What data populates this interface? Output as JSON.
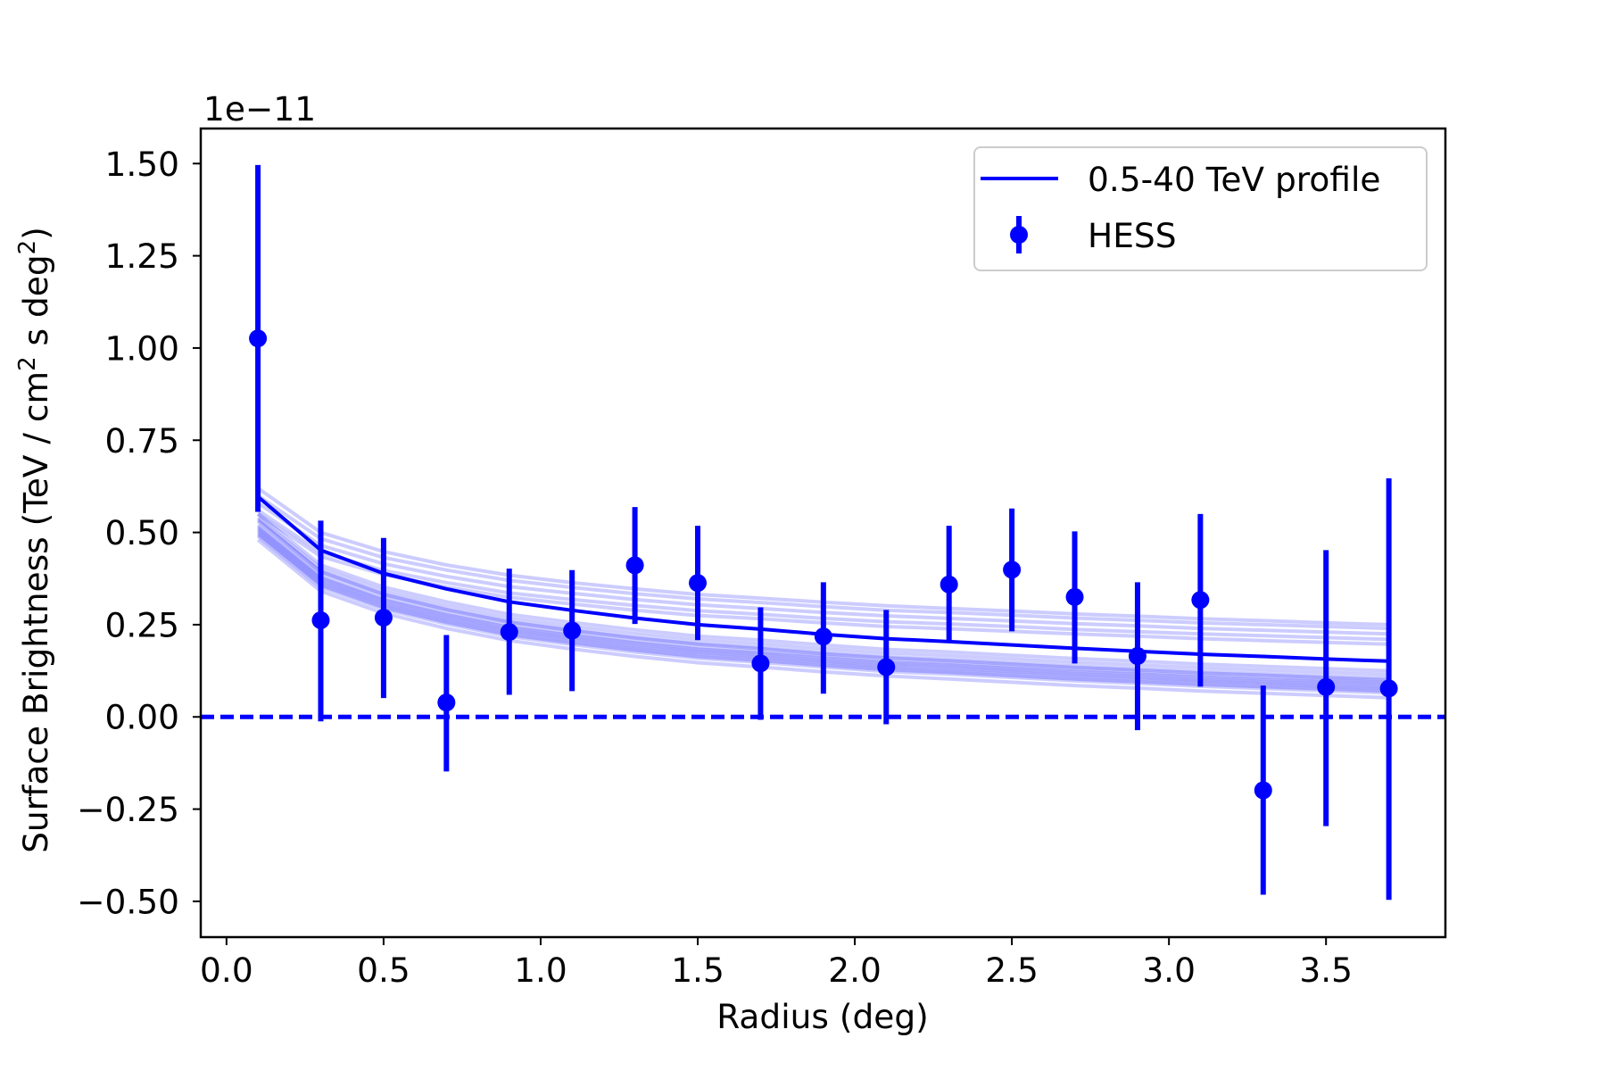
{
  "chart_data": {
    "type": "line",
    "title": "",
    "xlabel": "Radius (deg)",
    "ylabel": {
      "prefix": "Surface Brightness (TeV / cm",
      "sup1": "2",
      "middle": " s deg",
      "sup2": "2",
      "suffix": ")"
    },
    "y_offset_text": "1e−11",
    "xlim": [
      -0.082,
      3.88
    ],
    "ylim": [
      -0.597,
      1.595
    ],
    "grid": false,
    "legend_position": "top-right",
    "x_ticks": [
      {
        "value": 0.0,
        "label": "0.0"
      },
      {
        "value": 0.5,
        "label": "0.5"
      },
      {
        "value": 1.0,
        "label": "1.0"
      },
      {
        "value": 1.5,
        "label": "1.5"
      },
      {
        "value": 2.0,
        "label": "2.0"
      },
      {
        "value": 2.5,
        "label": "2.5"
      },
      {
        "value": 3.0,
        "label": "3.0"
      },
      {
        "value": 3.5,
        "label": "3.5"
      }
    ],
    "y_ticks": [
      {
        "value": 1.5,
        "label": "1.50"
      },
      {
        "value": 1.25,
        "label": "1.25"
      },
      {
        "value": 1.0,
        "label": "1.00"
      },
      {
        "value": 0.75,
        "label": "0.75"
      },
      {
        "value": 0.5,
        "label": "0.50"
      },
      {
        "value": 0.25,
        "label": "0.25"
      },
      {
        "value": 0.0,
        "label": "0.00"
      },
      {
        "value": -0.25,
        "label": "−0.25"
      },
      {
        "value": -0.5,
        "label": "−0.50"
      }
    ],
    "colors": {
      "series": "#0000ff",
      "light": "#0000ff",
      "axis": "#000000",
      "legend_edge": "#cccccc"
    },
    "x": [
      0.1,
      0.3,
      0.5,
      0.7,
      0.9,
      1.1,
      1.3,
      1.5,
      1.7,
      1.9,
      2.1,
      2.3,
      2.5,
      2.7,
      2.9,
      3.1,
      3.3,
      3.5,
      3.7
    ],
    "series": [
      {
        "name": "0.5-40 TeV profile",
        "kind": "line",
        "values": [
          0.597,
          0.452,
          0.389,
          0.347,
          0.312,
          0.289,
          0.268,
          0.25,
          0.238,
          0.224,
          0.212,
          0.204,
          0.195,
          0.186,
          0.178,
          0.17,
          0.164,
          0.157,
          0.151
        ]
      },
      {
        "name": "HESS",
        "kind": "errorbar",
        "values": [
          1.026,
          0.262,
          0.269,
          0.039,
          0.23,
          0.234,
          0.411,
          0.363,
          0.145,
          0.218,
          0.135,
          0.359,
          0.399,
          0.325,
          0.165,
          0.317,
          -0.199,
          0.081,
          0.077
        ],
        "err_upper": [
          1.496,
          0.532,
          0.485,
          0.222,
          0.402,
          0.398,
          0.569,
          0.518,
          0.297,
          0.365,
          0.29,
          0.518,
          0.565,
          0.503,
          0.365,
          0.55,
          0.085,
          0.452,
          0.647
        ],
        "err_lower": [
          0.556,
          -0.012,
          0.051,
          -0.148,
          0.06,
          0.07,
          0.252,
          0.208,
          -0.008,
          0.063,
          -0.02,
          0.202,
          0.232,
          0.145,
          -0.036,
          0.082,
          -0.482,
          -0.296,
          -0.496
        ]
      }
    ],
    "light_curves": [
      [
        0.62,
        0.5,
        0.448,
        0.412,
        0.384,
        0.364,
        0.347,
        0.332,
        0.322,
        0.311,
        0.301,
        0.294,
        0.287,
        0.279,
        0.273,
        0.266,
        0.261,
        0.255,
        0.25
      ],
      [
        0.6,
        0.483,
        0.432,
        0.398,
        0.37,
        0.351,
        0.334,
        0.32,
        0.31,
        0.299,
        0.289,
        0.283,
        0.276,
        0.268,
        0.262,
        0.255,
        0.25,
        0.245,
        0.24
      ],
      [
        0.58,
        0.465,
        0.415,
        0.381,
        0.353,
        0.335,
        0.318,
        0.304,
        0.294,
        0.283,
        0.274,
        0.267,
        0.26,
        0.253,
        0.247,
        0.24,
        0.235,
        0.23,
        0.225
      ],
      [
        0.56,
        0.446,
        0.397,
        0.364,
        0.336,
        0.318,
        0.302,
        0.288,
        0.278,
        0.267,
        0.258,
        0.252,
        0.245,
        0.237,
        0.231,
        0.225,
        0.22,
        0.215,
        0.21
      ],
      [
        0.55,
        0.435,
        0.386,
        0.352,
        0.324,
        0.306,
        0.289,
        0.275,
        0.266,
        0.255,
        0.245,
        0.239,
        0.232,
        0.225,
        0.219,
        0.212,
        0.207,
        0.202,
        0.197
      ],
      [
        0.55,
        0.412,
        0.352,
        0.312,
        0.278,
        0.256,
        0.236,
        0.219,
        0.208,
        0.195,
        0.183,
        0.176,
        0.167,
        0.158,
        0.151,
        0.143,
        0.137,
        0.131,
        0.125
      ],
      [
        0.54,
        0.402,
        0.342,
        0.302,
        0.268,
        0.246,
        0.226,
        0.209,
        0.198,
        0.185,
        0.173,
        0.166,
        0.157,
        0.148,
        0.141,
        0.133,
        0.127,
        0.121,
        0.115
      ],
      [
        0.535,
        0.394,
        0.332,
        0.291,
        0.257,
        0.234,
        0.214,
        0.197,
        0.185,
        0.171,
        0.16,
        0.152,
        0.143,
        0.134,
        0.127,
        0.119,
        0.113,
        0.106,
        0.1
      ],
      [
        0.53,
        0.392,
        0.332,
        0.292,
        0.258,
        0.236,
        0.216,
        0.199,
        0.188,
        0.175,
        0.163,
        0.156,
        0.147,
        0.138,
        0.131,
        0.123,
        0.117,
        0.111,
        0.105
      ],
      [
        0.52,
        0.382,
        0.322,
        0.282,
        0.248,
        0.226,
        0.206,
        0.189,
        0.178,
        0.165,
        0.153,
        0.146,
        0.137,
        0.128,
        0.121,
        0.113,
        0.107,
        0.101,
        0.095
      ],
      [
        0.515,
        0.377,
        0.317,
        0.277,
        0.243,
        0.221,
        0.201,
        0.184,
        0.173,
        0.16,
        0.148,
        0.141,
        0.132,
        0.123,
        0.116,
        0.108,
        0.102,
        0.096,
        0.09
      ],
      [
        0.51,
        0.372,
        0.312,
        0.272,
        0.238,
        0.216,
        0.196,
        0.179,
        0.168,
        0.155,
        0.143,
        0.136,
        0.127,
        0.118,
        0.111,
        0.103,
        0.097,
        0.091,
        0.085
      ],
      [
        0.505,
        0.367,
        0.307,
        0.267,
        0.233,
        0.211,
        0.191,
        0.174,
        0.163,
        0.15,
        0.138,
        0.131,
        0.122,
        0.113,
        0.106,
        0.098,
        0.092,
        0.086,
        0.08
      ],
      [
        0.5,
        0.362,
        0.302,
        0.262,
        0.228,
        0.206,
        0.186,
        0.169,
        0.158,
        0.145,
        0.133,
        0.126,
        0.117,
        0.108,
        0.101,
        0.093,
        0.087,
        0.081,
        0.075
      ],
      [
        0.495,
        0.357,
        0.297,
        0.257,
        0.223,
        0.201,
        0.181,
        0.164,
        0.153,
        0.14,
        0.128,
        0.121,
        0.112,
        0.103,
        0.096,
        0.088,
        0.082,
        0.076,
        0.07
      ],
      [
        0.49,
        0.352,
        0.292,
        0.252,
        0.218,
        0.196,
        0.176,
        0.159,
        0.148,
        0.135,
        0.123,
        0.116,
        0.107,
        0.098,
        0.091,
        0.083,
        0.077,
        0.071,
        0.065
      ],
      [
        0.48,
        0.341,
        0.281,
        0.24,
        0.207,
        0.184,
        0.164,
        0.147,
        0.135,
        0.122,
        0.111,
        0.103,
        0.094,
        0.085,
        0.078,
        0.07,
        0.064,
        0.058,
        0.052
      ]
    ],
    "reference_line": {
      "y": 0.0,
      "style": "dashed"
    },
    "legend": [
      {
        "label": "0.5-40 TeV profile",
        "marker": "line"
      },
      {
        "label": "HESS",
        "marker": "errorbar"
      }
    ]
  }
}
